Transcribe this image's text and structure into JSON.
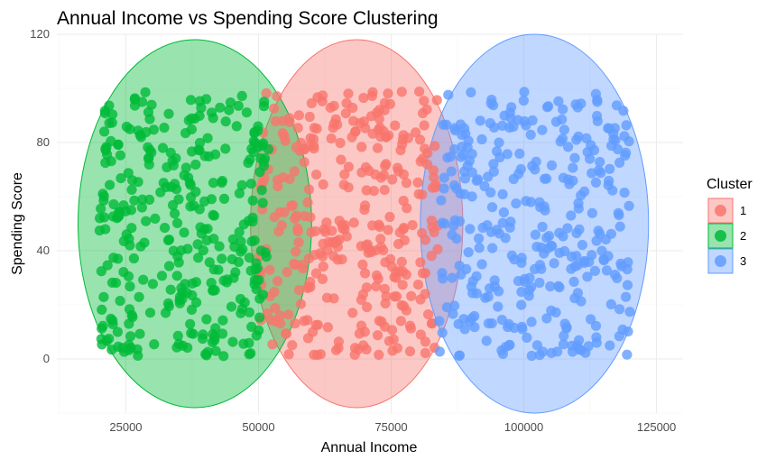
{
  "chart_data": {
    "type": "scatter",
    "title": "Annual Income vs Spending Score Clustering",
    "xlabel": "Annual Income",
    "ylabel": "Spending Score",
    "xlim": [
      12000,
      130000
    ],
    "ylim": [
      -20,
      120
    ],
    "x_ticks": [
      25000,
      50000,
      75000,
      100000,
      125000
    ],
    "x_tick_labels": [
      "25000",
      "50000",
      "75000",
      "100000",
      "125000"
    ],
    "y_ticks": [
      0,
      40,
      80,
      120
    ],
    "y_tick_labels": [
      "0",
      "40",
      "80",
      "120"
    ],
    "grid": true,
    "legend": {
      "title": "Cluster",
      "position": "right",
      "entries": [
        "1",
        "2",
        "3"
      ]
    },
    "series": [
      {
        "name": "1",
        "color": "#F8766D",
        "count": 330,
        "x_range": [
          50000,
          84000
        ],
        "y_range": [
          1,
          99
        ],
        "ellipse": {
          "cx": 68500,
          "cy": 50,
          "rx": 20000,
          "ry": 68
        }
      },
      {
        "name": "2",
        "color": "#00BA38",
        "count": 330,
        "x_range": [
          20000,
          52000
        ],
        "y_range": [
          1,
          99
        ],
        "ellipse": {
          "cx": 38000,
          "cy": 50,
          "rx": 22000,
          "ry": 68
        }
      },
      {
        "name": "3",
        "color": "#619CFF",
        "count": 330,
        "x_range": [
          84000,
          120000
        ],
        "y_range": [
          1,
          99
        ],
        "ellipse": {
          "cx": 102000,
          "cy": 50,
          "rx": 21500,
          "ry": 70
        }
      }
    ]
  }
}
